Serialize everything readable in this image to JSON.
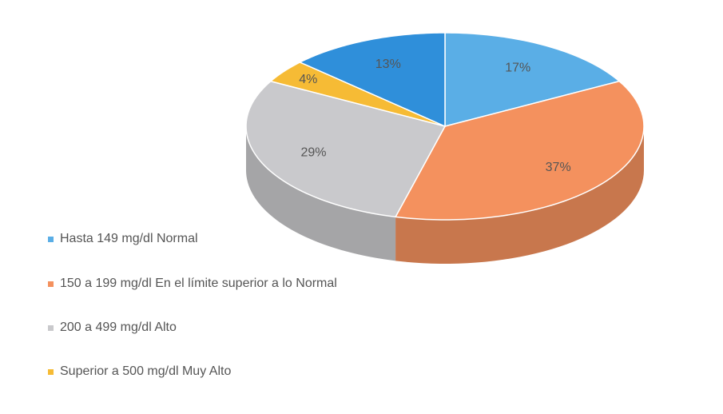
{
  "chart_data": {
    "type": "pie",
    "categories": [
      "Hasta 149 mg/dl Normal",
      "150 a 199 mg/dl En el límite superior a lo Normal",
      "200 a 499 mg/dl  Alto",
      "Superior a 500 mg/dl  Muy Alto",
      null
    ],
    "values": [
      17,
      37,
      29,
      4,
      13
    ],
    "value_labels": [
      "17%",
      "37%",
      "29%",
      "4%",
      "13%"
    ],
    "colors": [
      "#5aaee6",
      "#f4915e",
      "#c9c9cc",
      "#f6bb35",
      "#2f8fda"
    ],
    "legend": "bottom-left"
  }
}
